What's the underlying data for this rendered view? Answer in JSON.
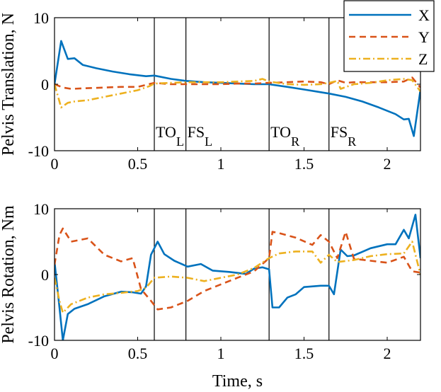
{
  "legend": {
    "placement": "top-right",
    "entries": [
      {
        "label": "X",
        "color": "#0072BD",
        "dash": "solid"
      },
      {
        "label": "Y",
        "color": "#D95319",
        "dash": "dashed"
      },
      {
        "label": "Z",
        "color": "#EDB120",
        "dash": "dashdot"
      }
    ]
  },
  "events": [
    {
      "t": 0.6,
      "main": "TO",
      "sub": "L"
    },
    {
      "t": 0.79,
      "main": "FS",
      "sub": "L"
    },
    {
      "t": 1.29,
      "main": "TO",
      "sub": "R"
    },
    {
      "t": 1.65,
      "main": "FS",
      "sub": "R"
    }
  ],
  "chart_data": [
    {
      "type": "line",
      "title": "",
      "xlabel": "",
      "ylabel": "Pelvis Translation, N",
      "xlim": [
        0,
        2.2
      ],
      "ylim": [
        -10,
        10
      ],
      "xticks": [
        0,
        0.5,
        1,
        1.5,
        2
      ],
      "xtick_labels": [
        "0",
        "0.5",
        "1",
        "1.5",
        "2"
      ],
      "yticks": [
        -10,
        0,
        10
      ],
      "ytick_labels": [
        "-10",
        "0",
        "10"
      ],
      "grid": false,
      "series": [
        {
          "name": "X",
          "color": "#0072BD",
          "dash": "solid",
          "x": [
            0,
            0.04,
            0.08,
            0.12,
            0.17,
            0.25,
            0.35,
            0.45,
            0.55,
            0.6,
            0.7,
            0.79,
            0.9,
            1.0,
            1.1,
            1.2,
            1.29,
            1.4,
            1.5,
            1.6,
            1.65,
            1.75,
            1.85,
            1.95,
            2.05,
            2.1,
            2.13,
            2.16,
            2.2
          ],
          "y": [
            0,
            6.5,
            3.8,
            3.9,
            2.9,
            2.4,
            1.9,
            1.5,
            1.2,
            1.3,
            0.8,
            0.5,
            0.3,
            0.2,
            0.1,
            0.0,
            0.0,
            -0.4,
            -0.8,
            -1.2,
            -1.4,
            -1.9,
            -2.6,
            -3.5,
            -4.5,
            -5.3,
            -5.2,
            -7.8,
            -0.8
          ]
        },
        {
          "name": "Y",
          "color": "#D95319",
          "dash": "dashed",
          "x": [
            0,
            0.05,
            0.1,
            0.2,
            0.3,
            0.4,
            0.5,
            0.6,
            0.7,
            0.8,
            0.9,
            1.0,
            1.1,
            1.2,
            1.29,
            1.4,
            1.5,
            1.6,
            1.65,
            1.7,
            1.75,
            1.8,
            1.9,
            2.0,
            2.1,
            2.15,
            2.2
          ],
          "y": [
            0,
            -0.5,
            -0.7,
            -0.6,
            -0.5,
            -0.4,
            -0.4,
            0.2,
            0.0,
            0.0,
            0.0,
            0.0,
            0.1,
            0.1,
            0.2,
            0.3,
            0.4,
            0.3,
            0.0,
            0.6,
            0.2,
            0.3,
            0.3,
            0.3,
            0.4,
            1.0,
            -0.5
          ]
        },
        {
          "name": "Z",
          "color": "#EDB120",
          "dash": "dashdot",
          "x": [
            0,
            0.04,
            0.08,
            0.12,
            0.2,
            0.3,
            0.4,
            0.5,
            0.57,
            0.6,
            0.7,
            0.8,
            0.9,
            1.0,
            1.1,
            1.2,
            1.25,
            1.29,
            1.4,
            1.5,
            1.6,
            1.65,
            1.7,
            1.72,
            1.8,
            1.9,
            2.0,
            2.1,
            2.15,
            2.2
          ],
          "y": [
            0,
            -3.5,
            -2.8,
            -2.6,
            -2.4,
            -1.9,
            -1.4,
            -0.9,
            -0.3,
            0.1,
            0.2,
            0.3,
            0.3,
            0.3,
            0.4,
            0.5,
            0.8,
            0.4,
            0.0,
            -0.1,
            0.0,
            0.2,
            0.5,
            -0.7,
            0.0,
            0.2,
            0.6,
            0.8,
            0.6,
            -1.1
          ]
        }
      ]
    },
    {
      "type": "line",
      "title": "",
      "xlabel": "Time, s",
      "ylabel": "Pelvis Rotation, Nm",
      "xlim": [
        0,
        2.2
      ],
      "ylim": [
        -10,
        10
      ],
      "xticks": [
        0,
        0.5,
        1,
        1.5,
        2
      ],
      "xtick_labels": [
        "0",
        "0.5",
        "1",
        "1.5",
        "2"
      ],
      "yticks": [
        -10,
        0,
        10
      ],
      "ytick_labels": [
        "-10",
        "0",
        "10"
      ],
      "grid": false,
      "series": [
        {
          "name": "X",
          "color": "#0072BD",
          "dash": "solid",
          "x": [
            0,
            0.03,
            0.05,
            0.08,
            0.12,
            0.2,
            0.3,
            0.4,
            0.47,
            0.52,
            0.55,
            0.58,
            0.62,
            0.66,
            0.72,
            0.8,
            0.88,
            0.95,
            1.05,
            1.15,
            1.2,
            1.25,
            1.29,
            1.31,
            1.35,
            1.4,
            1.45,
            1.5,
            1.6,
            1.65,
            1.68,
            1.72,
            1.76,
            1.8,
            1.9,
            2.0,
            2.05,
            2.1,
            2.13,
            2.17,
            2.2
          ],
          "y": [
            2,
            -5,
            -10,
            -6,
            -5.2,
            -4.5,
            -3.3,
            -2.6,
            -2.7,
            -2.9,
            -1.8,
            3,
            5,
            3.1,
            2.1,
            1.2,
            1.6,
            0.6,
            0.4,
            0.1,
            0.9,
            1.1,
            0.8,
            -5,
            -5,
            -3.5,
            -3,
            -1.9,
            -1.7,
            -1.7,
            -3,
            3.8,
            2.8,
            2.9,
            4,
            4.6,
            4.6,
            6.8,
            5.5,
            9.1,
            2.5
          ]
        },
        {
          "name": "Y",
          "color": "#D95319",
          "dash": "dashed",
          "x": [
            0,
            0.03,
            0.05,
            0.1,
            0.2,
            0.3,
            0.4,
            0.47,
            0.52,
            0.58,
            0.62,
            0.7,
            0.8,
            0.9,
            1.0,
            1.1,
            1.2,
            1.29,
            1.31,
            1.35,
            1.45,
            1.55,
            1.6,
            1.65,
            1.7,
            1.75,
            1.8,
            1.9,
            2.0,
            2.1,
            2.15,
            2.2
          ],
          "y": [
            1.5,
            6,
            7,
            5,
            5.5,
            3,
            2,
            2.5,
            -2.2,
            -4,
            -5.3,
            -5,
            -4,
            -2.5,
            -1.5,
            -0.5,
            0.5,
            2.5,
            6.5,
            6.3,
            5.6,
            4.5,
            6,
            5,
            2.5,
            6.5,
            2.4,
            2.1,
            1.8,
            2.7,
            0.5,
            0.3
          ]
        },
        {
          "name": "Z",
          "color": "#EDB120",
          "dash": "dashdot",
          "x": [
            0,
            0.03,
            0.05,
            0.1,
            0.2,
            0.3,
            0.4,
            0.5,
            0.55,
            0.6,
            0.7,
            0.8,
            0.9,
            1.0,
            1.1,
            1.2,
            1.29,
            1.35,
            1.45,
            1.55,
            1.6,
            1.65,
            1.7,
            1.8,
            1.9,
            2.0,
            2.1,
            2.15,
            2.2
          ],
          "y": [
            -0.5,
            -4,
            -5.8,
            -4.5,
            -3.5,
            -3,
            -2.8,
            -2.5,
            -2,
            -0.5,
            -0.3,
            -0.5,
            -1,
            -0.5,
            0,
            1,
            2.5,
            3.2,
            3.5,
            3.5,
            1.8,
            3,
            1.9,
            2.2,
            2.8,
            3.1,
            3.2,
            5,
            0
          ]
        }
      ]
    }
  ]
}
